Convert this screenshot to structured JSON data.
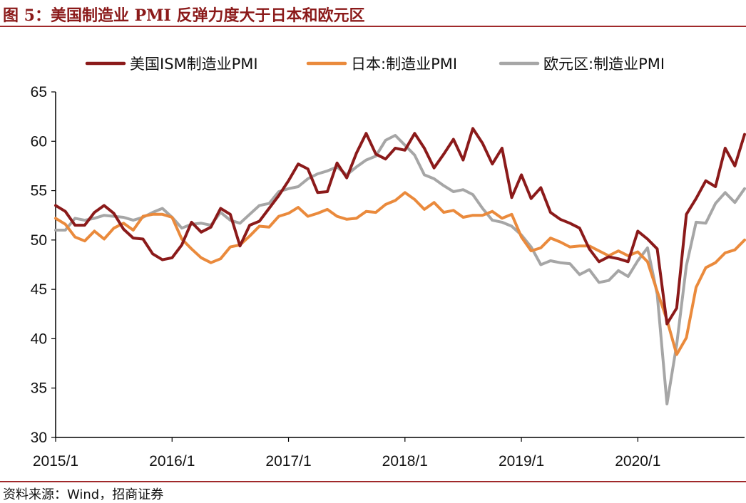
{
  "figure": {
    "title": "图 5：美国制造业 PMI 反弹力度大于日本和欧元区",
    "source": "资料来源：Wind，招商证券"
  },
  "chart_data": {
    "type": "line",
    "ylim": [
      30,
      65
    ],
    "yticks": [
      30,
      35,
      40,
      45,
      50,
      55,
      60,
      65
    ],
    "x_tick_labels": [
      "2015/1",
      "2016/1",
      "2017/1",
      "2018/1",
      "2019/1",
      "2020/1"
    ],
    "x_start": "2015/1",
    "x_end": "2020/11",
    "legend_position": "top",
    "grid": false,
    "series": [
      {
        "name": "美国ISM制造业PMI",
        "color": "#8b1a1a",
        "values": [
          53.5,
          52.9,
          51.5,
          51.5,
          52.8,
          53.5,
          52.7,
          51.1,
          50.2,
          50.1,
          48.6,
          48.0,
          48.2,
          49.5,
          51.8,
          50.8,
          51.3,
          53.2,
          52.6,
          49.4,
          51.5,
          51.9,
          53.2,
          54.5,
          56.0,
          57.7,
          57.2,
          54.8,
          54.9,
          57.8,
          56.3,
          58.8,
          60.8,
          58.7,
          58.2,
          59.3,
          59.1,
          60.8,
          59.3,
          57.3,
          58.7,
          60.2,
          58.1,
          61.3,
          59.8,
          57.7,
          59.3,
          54.3,
          56.6,
          54.2,
          55.3,
          52.8,
          52.1,
          51.7,
          51.2,
          49.1,
          47.8,
          48.3,
          48.1,
          47.8,
          50.9,
          50.1,
          49.1,
          41.5,
          43.1,
          52.6,
          54.2,
          56.0,
          55.4,
          59.3,
          57.5,
          60.7
        ]
      },
      {
        "name": "日本:制造业PMI",
        "color": "#ea8a3c",
        "values": [
          52.2,
          51.6,
          50.3,
          49.9,
          50.9,
          50.1,
          51.2,
          51.7,
          51.0,
          52.4,
          52.6,
          52.6,
          52.3,
          50.1,
          49.1,
          48.2,
          47.7,
          48.1,
          49.3,
          49.5,
          50.4,
          51.4,
          51.3,
          52.4,
          52.7,
          53.3,
          52.4,
          52.7,
          53.1,
          52.4,
          52.1,
          52.2,
          52.9,
          52.8,
          53.6,
          54.0,
          54.8,
          54.1,
          53.1,
          53.8,
          52.8,
          53.0,
          52.3,
          52.5,
          52.5,
          52.9,
          52.2,
          52.6,
          50.3,
          48.9,
          49.2,
          50.2,
          49.8,
          49.3,
          49.4,
          49.4,
          48.9,
          48.4,
          48.9,
          48.4,
          48.8,
          47.8,
          44.8,
          41.9,
          38.4,
          40.1,
          45.2,
          47.2,
          47.7,
          48.7,
          49.0,
          50.0
        ]
      },
      {
        "name": "欧元区:制造业PMI",
        "color": "#a6a6a6",
        "values": [
          51.0,
          51.0,
          52.2,
          52.0,
          52.2,
          52.5,
          52.4,
          52.3,
          52.0,
          52.3,
          52.8,
          53.2,
          52.3,
          51.2,
          51.6,
          51.7,
          51.5,
          52.8,
          52.0,
          51.7,
          52.6,
          53.5,
          53.7,
          54.9,
          55.2,
          55.4,
          56.2,
          56.7,
          57.0,
          57.4,
          56.6,
          57.4,
          58.1,
          58.5,
          60.1,
          60.6,
          59.6,
          58.6,
          56.6,
          56.2,
          55.5,
          54.9,
          55.1,
          54.6,
          53.2,
          52.0,
          51.8,
          51.4,
          50.5,
          49.3,
          47.5,
          47.9,
          47.7,
          47.6,
          46.5,
          47.0,
          45.7,
          45.9,
          46.9,
          46.3,
          47.9,
          49.2,
          44.5,
          33.4,
          39.4,
          47.4,
          51.8,
          51.7,
          53.7,
          54.8,
          53.8,
          55.2
        ]
      }
    ]
  }
}
